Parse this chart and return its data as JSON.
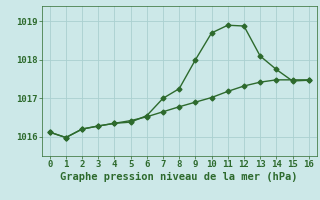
{
  "line1_x": [
    0,
    1,
    2,
    3,
    4,
    5,
    6,
    7,
    8,
    9,
    10,
    11,
    12,
    13,
    14,
    15,
    16
  ],
  "line1_y": [
    1016.12,
    1015.98,
    1016.2,
    1016.28,
    1016.35,
    1016.38,
    1016.55,
    1017.0,
    1017.25,
    1018.0,
    1018.7,
    1018.9,
    1018.88,
    1018.1,
    1017.75,
    1017.45,
    1017.47
  ],
  "line2_x": [
    0,
    1,
    2,
    3,
    4,
    5,
    6,
    7,
    8,
    9,
    10,
    11,
    12,
    13,
    14,
    15,
    16
  ],
  "line2_y": [
    1016.12,
    1015.98,
    1016.2,
    1016.28,
    1016.35,
    1016.42,
    1016.52,
    1016.65,
    1016.78,
    1016.9,
    1017.02,
    1017.18,
    1017.32,
    1017.42,
    1017.48,
    1017.48,
    1017.48
  ],
  "line_color": "#2d6a2d",
  "bg_color": "#cce8e8",
  "grid_color": "#aad0d0",
  "xlabel": "Graphe pression niveau de la mer (hPa)",
  "xlim": [
    -0.5,
    16.5
  ],
  "ylim": [
    1015.5,
    1019.4
  ],
  "yticks": [
    1016,
    1017,
    1018,
    1019
  ],
  "xticks": [
    0,
    1,
    2,
    3,
    4,
    5,
    6,
    7,
    8,
    9,
    10,
    11,
    12,
    13,
    14,
    15,
    16
  ],
  "marker": "D",
  "marker_size": 2.5,
  "line_width": 1.0,
  "xlabel_fontsize": 7.5,
  "tick_fontsize": 6.5
}
